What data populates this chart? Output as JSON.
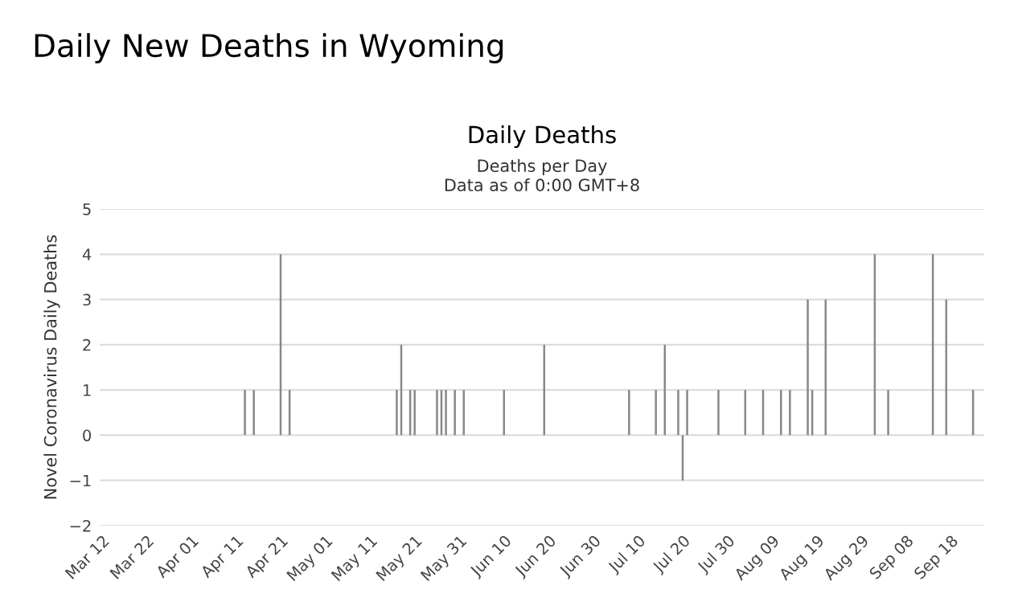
{
  "chart_data": {
    "type": "bar",
    "title": "Daily New Deaths in Wyoming",
    "subtitle": "Daily Deaths",
    "annotations": [
      "Deaths per Day",
      "Data as of 0:00 GMT+8"
    ],
    "ylabel": "Novel Coronavirus Daily Deaths",
    "categories": [
      "Mar 12",
      null,
      null,
      null,
      null,
      null,
      null,
      null,
      null,
      null,
      "Mar 22",
      null,
      null,
      null,
      null,
      null,
      null,
      null,
      null,
      null,
      "Apr 01",
      null,
      null,
      null,
      null,
      null,
      null,
      null,
      null,
      null,
      "Apr 11",
      null,
      null,
      null,
      null,
      null,
      null,
      null,
      null,
      null,
      "Apr 21",
      null,
      null,
      null,
      null,
      null,
      null,
      null,
      null,
      null,
      "May 01",
      null,
      null,
      null,
      null,
      null,
      null,
      null,
      null,
      null,
      "May 11",
      null,
      null,
      null,
      null,
      null,
      null,
      null,
      null,
      null,
      "May 21",
      null,
      null,
      null,
      null,
      null,
      null,
      null,
      null,
      null,
      "May 31",
      null,
      null,
      null,
      null,
      null,
      null,
      null,
      null,
      null,
      "Jun 10",
      null,
      null,
      null,
      null,
      null,
      null,
      null,
      null,
      null,
      "Jun 20",
      null,
      null,
      null,
      null,
      null,
      null,
      null,
      null,
      null,
      "Jun 30",
      null,
      null,
      null,
      null,
      null,
      null,
      null,
      null,
      null,
      "Jul 10",
      null,
      null,
      null,
      null,
      null,
      null,
      null,
      null,
      null,
      "Jul 20",
      null,
      null,
      null,
      null,
      null,
      null,
      null,
      null,
      null,
      "Jul 30",
      null,
      null,
      null,
      null,
      null,
      null,
      null,
      null,
      null,
      "Aug 09",
      null,
      null,
      null,
      null,
      null,
      null,
      null,
      null,
      null,
      "Aug 19",
      null,
      null,
      null,
      null,
      null,
      null,
      null,
      null,
      null,
      "Aug 29",
      null,
      null,
      null,
      null,
      null,
      null,
      null,
      null,
      null,
      "Sep 08",
      null,
      null,
      null,
      null,
      null,
      null,
      null,
      null,
      null,
      "Sep 18",
      null,
      null,
      null,
      null,
      null,
      null,
      null
    ],
    "values": [
      0,
      0,
      0,
      0,
      0,
      0,
      0,
      0,
      0,
      0,
      0,
      0,
      0,
      0,
      0,
      0,
      0,
      0,
      0,
      0,
      0,
      0,
      0,
      0,
      0,
      0,
      0,
      0,
      0,
      0,
      0,
      0,
      1,
      0,
      1,
      0,
      0,
      0,
      0,
      0,
      4,
      0,
      1,
      0,
      0,
      0,
      0,
      0,
      0,
      0,
      0,
      0,
      0,
      0,
      0,
      0,
      0,
      0,
      0,
      0,
      0,
      0,
      0,
      0,
      0,
      0,
      1,
      2,
      0,
      1,
      1,
      0,
      0,
      0,
      0,
      1,
      1,
      1,
      0,
      1,
      0,
      1,
      0,
      0,
      0,
      0,
      0,
      0,
      0,
      0,
      1,
      0,
      0,
      0,
      0,
      0,
      0,
      0,
      0,
      2,
      0,
      0,
      0,
      0,
      0,
      0,
      0,
      0,
      0,
      0,
      0,
      0,
      0,
      0,
      0,
      0,
      0,
      0,
      1,
      0,
      0,
      0,
      0,
      0,
      1,
      0,
      2,
      0,
      0,
      1,
      -1,
      1,
      0,
      0,
      0,
      0,
      0,
      0,
      1,
      0,
      0,
      0,
      0,
      0,
      1,
      0,
      0,
      0,
      1,
      0,
      0,
      0,
      1,
      0,
      1,
      0,
      0,
      0,
      3,
      1,
      0,
      0,
      3,
      0,
      0,
      0,
      0,
      0,
      0,
      0,
      0,
      0,
      0,
      4,
      0,
      0,
      1,
      0,
      0,
      0,
      0,
      0,
      0,
      0,
      0,
      0,
      4,
      0,
      0,
      3,
      0,
      0,
      0,
      0,
      0,
      1,
      0,
      0
    ],
    "color": "#888888",
    "ylim": [
      -2,
      5
    ],
    "yticks": [
      -2,
      -1,
      0,
      1,
      2,
      3,
      4,
      5
    ],
    "grid": "y"
  }
}
